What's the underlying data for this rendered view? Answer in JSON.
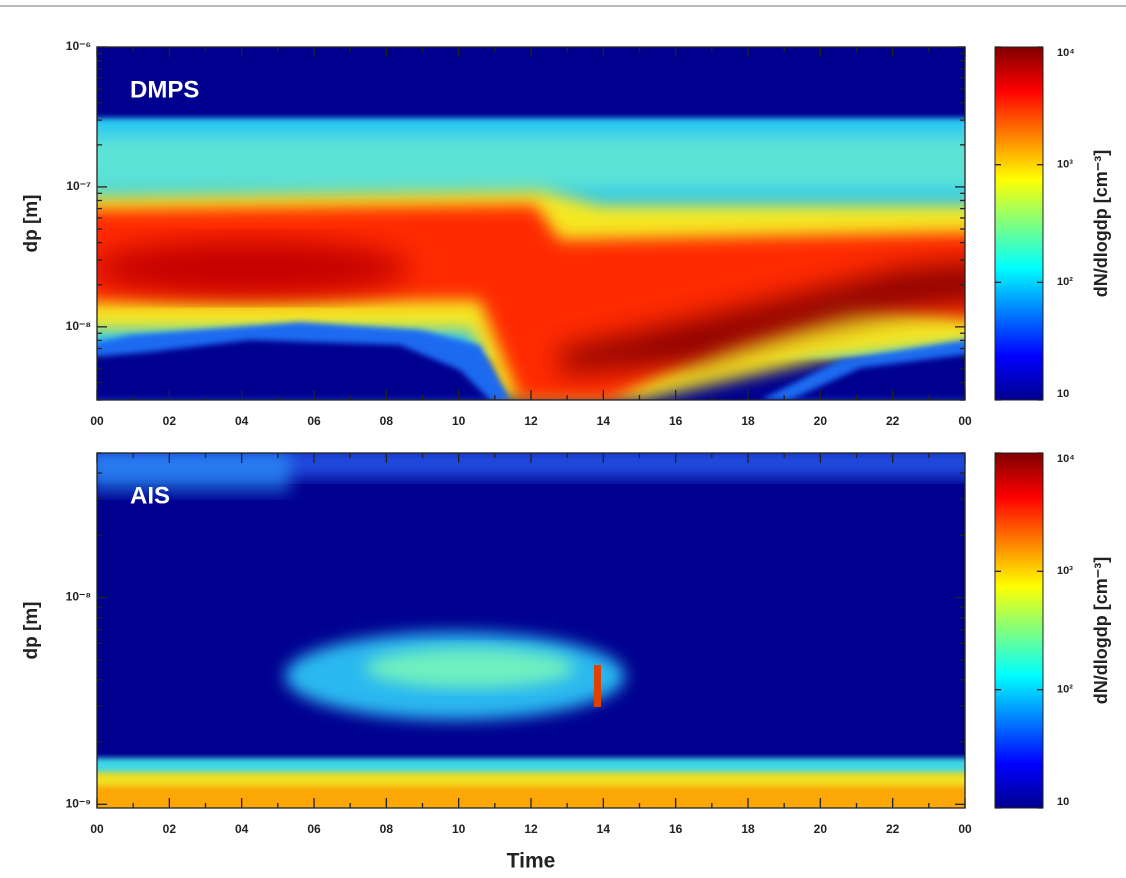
{
  "chart_data": [
    {
      "type": "heatmap",
      "title": "DMPS",
      "ylabel": "dp [m]",
      "log_y": true,
      "xlim": [
        0,
        24
      ],
      "xticks": [
        {
          "value": 0,
          "label": "00"
        },
        {
          "value": 2,
          "label": "02"
        },
        {
          "value": 4,
          "label": "04"
        },
        {
          "value": 6,
          "label": "06"
        },
        {
          "value": 8,
          "label": "08"
        },
        10,
        12,
        14,
        16,
        18,
        20,
        22,
        {
          "value": 24,
          "label": "00"
        }
      ],
      "ylim": [
        3e-09,
        1e-06
      ],
      "yticks": [
        {
          "value": 1e-06,
          "label": "10⁻⁶"
        },
        {
          "value": 1e-07,
          "label": "10⁻⁷"
        },
        {
          "value": 1e-08,
          "label": "10⁻⁸"
        }
      ],
      "zlim": [
        10,
        10000
      ],
      "zlabel": "dN/dlogdp [cm⁻³]",
      "zticks": [
        {
          "value": 10000,
          "label": "10⁴"
        },
        {
          "value": 1000,
          "label": "10³"
        },
        {
          "value": 100,
          "label": "10²"
        },
        10
      ]
    },
    {
      "type": "heatmap",
      "title": "AIS",
      "ylabel": "dp [m]",
      "xlabel": "Time",
      "log_y": true,
      "xlim": [
        0,
        24
      ],
      "xticks": [
        {
          "value": 0,
          "label": "00"
        },
        {
          "value": 2,
          "label": "02"
        },
        {
          "value": 4,
          "label": "04"
        },
        {
          "value": 6,
          "label": "06"
        },
        {
          "value": 8,
          "label": "08"
        },
        10,
        12,
        14,
        16,
        18,
        20,
        22,
        {
          "value": 24,
          "label": "00"
        }
      ],
      "ylim": [
        9.6e-10,
        5e-08
      ],
      "yticks": [
        {
          "value": 1e-08,
          "label": "10⁻⁸"
        },
        {
          "value": 1e-09,
          "label": "10⁻⁹"
        }
      ],
      "zlim": [
        10,
        10000
      ],
      "zlabel": "dN/dlogdp [cm⁻³]",
      "zticks": [
        {
          "value": 10000,
          "label": "10⁴"
        },
        {
          "value": 1000,
          "label": "10³"
        },
        {
          "value": 100,
          "label": "10²"
        },
        10
      ]
    }
  ]
}
